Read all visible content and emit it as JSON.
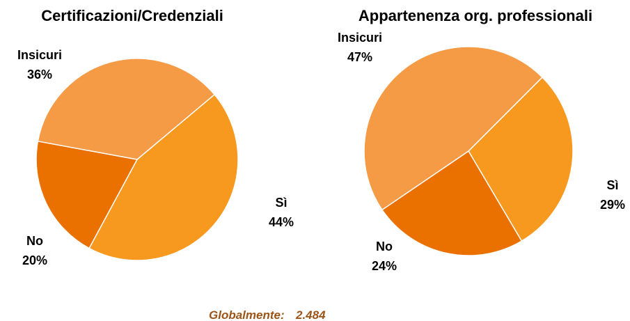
{
  "chart_data": [
    {
      "type": "pie",
      "title": "Certificazioni/Credenziali",
      "categories": [
        "Sì",
        "No",
        "Insicuri"
      ],
      "values": [
        44,
        20,
        36
      ],
      "value_labels": [
        "44%",
        "20%",
        "36%"
      ],
      "colors": [
        "#f7991e",
        "#ea7000",
        "#f59a45"
      ]
    },
    {
      "type": "pie",
      "title": "Appartenenza org. professionali",
      "categories": [
        "Sì",
        "No",
        "Insicuri"
      ],
      "values": [
        29,
        24,
        47
      ],
      "value_labels": [
        "29%",
        "24%",
        "47%"
      ],
      "colors": [
        "#f7991e",
        "#ea7000",
        "#f59a45"
      ]
    }
  ],
  "footer": {
    "label": "Globalmente:",
    "value": "2.484"
  }
}
